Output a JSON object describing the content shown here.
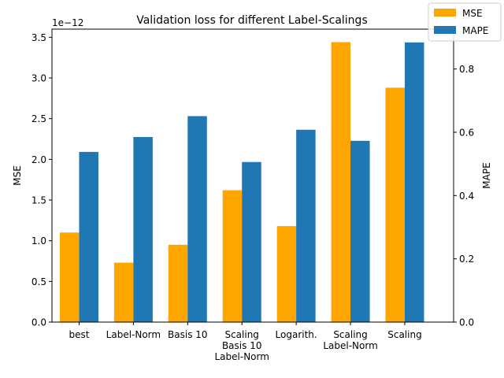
{
  "chart_data": {
    "type": "bar",
    "title": "Validation loss for different Label-Scalings",
    "categories": [
      [
        "best"
      ],
      [
        "Label-Norm"
      ],
      [
        "Basis 10"
      ],
      [
        "Scaling",
        "Basis 10",
        "Label-Norm"
      ],
      [
        "Logarith."
      ],
      [
        "Scaling",
        "Label-Norm"
      ],
      [
        "Scaling"
      ]
    ],
    "series": [
      {
        "name": "MSE",
        "axis": "left",
        "color": "#ffa500",
        "values": [
          1.1e-12,
          7.3e-13,
          9.5e-13,
          1.62e-12,
          1.18e-12,
          3.44e-12,
          2.88e-12
        ]
      },
      {
        "name": "MAPE",
        "axis": "right",
        "color": "#1f77b4",
        "values": [
          0.538,
          0.585,
          0.651,
          0.506,
          0.608,
          0.573,
          0.884
        ]
      }
    ],
    "y_left": {
      "label": "MSE",
      "offset_text": "1e−12",
      "ylim": [
        0,
        3.6
      ],
      "ticks": [
        0.0,
        0.5,
        1.0,
        1.5,
        2.0,
        2.5,
        3.0,
        3.5
      ],
      "tick_labels": [
        "0.0",
        "0.5",
        "1.0",
        "1.5",
        "2.0",
        "2.5",
        "3.0",
        "3.5"
      ]
    },
    "y_right": {
      "label": "MAPE",
      "ylim": [
        0,
        0.926
      ],
      "ticks": [
        0.0,
        0.2,
        0.4,
        0.6,
        0.8
      ],
      "tick_labels": [
        "0.0",
        "0.2",
        "0.4",
        "0.6",
        "0.8"
      ]
    },
    "legend_position": "top-right",
    "grid": false
  }
}
